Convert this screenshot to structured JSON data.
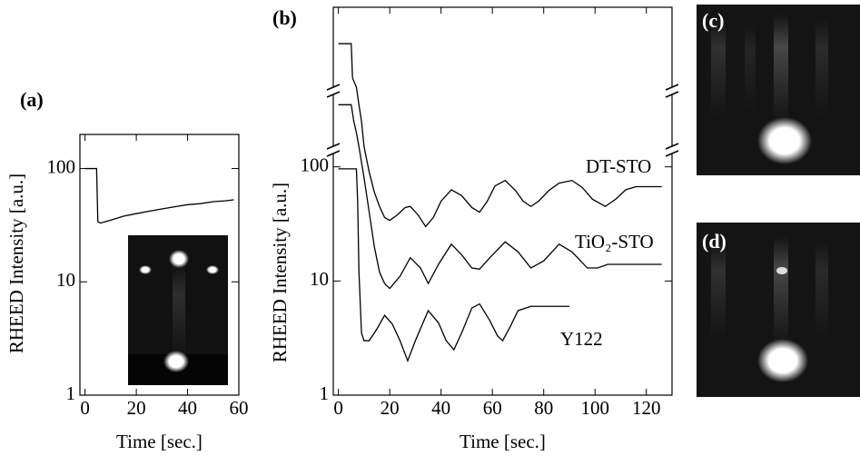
{
  "chart_data": [
    {
      "type": "line",
      "panel_label": "(a)",
      "x_label": "Time [sec.]",
      "y_label": "RHEED Intensity [a.u.]",
      "log_y": true,
      "xlim": [
        -2,
        60
      ],
      "ylim": [
        1,
        200
      ],
      "xticks": [
        0,
        20,
        40,
        60
      ],
      "yticks": [
        1,
        10,
        100
      ],
      "series": [
        {
          "color": "#000000",
          "x": [
            0,
            4.5,
            5,
            6,
            8,
            10,
            15,
            20,
            25,
            30,
            35,
            40,
            45,
            50,
            55,
            58
          ],
          "values": [
            100,
            100,
            34,
            33,
            34,
            35,
            38,
            40,
            42,
            44,
            46,
            48,
            49,
            51,
            52,
            53
          ]
        }
      ]
    },
    {
      "type": "line",
      "panel_label": "(b)",
      "x_label": "Time [sec.]",
      "y_label": "RHEED Intensity [a.u.]",
      "log_y": true,
      "xlim": [
        -2,
        130
      ],
      "ylim": [
        1,
        2500
      ],
      "xticks": [
        0,
        20,
        40,
        60,
        80,
        100,
        120
      ],
      "yticks": [
        1,
        10,
        100
      ],
      "series": [
        {
          "name": "DT-STO",
          "color": "#000000",
          "x": [
            0,
            5,
            5.5,
            7,
            8,
            9,
            10,
            12,
            14,
            16,
            18,
            20,
            23,
            26,
            28,
            31,
            34,
            37,
            40,
            44,
            48,
            52,
            55,
            58,
            61,
            65,
            69,
            72,
            75,
            78,
            82,
            86,
            91,
            95,
            99,
            104,
            108,
            112,
            116,
            120,
            126
          ],
          "values": [
            1200,
            1200,
            600,
            500,
            350,
            250,
            150,
            90,
            60,
            45,
            36,
            34,
            38,
            44,
            45,
            38,
            30,
            36,
            50,
            63,
            56,
            44,
            40,
            50,
            68,
            76,
            62,
            50,
            45,
            50,
            62,
            72,
            76,
            66,
            52,
            45,
            52,
            63,
            67,
            67,
            67
          ]
        },
        {
          "name": "TiO₂-STO",
          "color": "#000000",
          "x": [
            0,
            5,
            6,
            7,
            8,
            10,
            12,
            14,
            16,
            18,
            20,
            24,
            28,
            32,
            35,
            39,
            44,
            48,
            52,
            55,
            59,
            65,
            70,
            75,
            80,
            86,
            91,
            97,
            101,
            105,
            110,
            115,
            120,
            126
          ],
          "values": [
            350,
            350,
            250,
            200,
            150,
            80,
            40,
            20,
            12,
            9.5,
            8.6,
            11,
            16,
            13,
            9.5,
            14,
            21,
            17,
            13,
            12.7,
            16,
            22,
            18,
            13,
            15,
            21,
            18,
            13,
            13,
            14,
            14,
            14,
            14,
            14
          ]
        },
        {
          "name": "Y122",
          "color": "#000000",
          "x": [
            0,
            7,
            7.5,
            8,
            9,
            10,
            12,
            15,
            18,
            21,
            24,
            27,
            30,
            35,
            39,
            42,
            45,
            48,
            52,
            55,
            59,
            62,
            64,
            67,
            70,
            75,
            80,
            85,
            90
          ],
          "values": [
            96,
            96,
            50,
            12,
            3.5,
            3.0,
            3.0,
            3.8,
            5.0,
            4.2,
            3.0,
            2.0,
            3.0,
            5.5,
            4.3,
            3.0,
            2.5,
            3.5,
            5.8,
            6.3,
            4.5,
            3.3,
            3.0,
            4.0,
            5.5,
            6.0,
            6.0,
            6.0,
            6.0
          ]
        }
      ]
    }
  ],
  "images": [
    {
      "label": "(c)"
    },
    {
      "label": "(d)"
    }
  ]
}
